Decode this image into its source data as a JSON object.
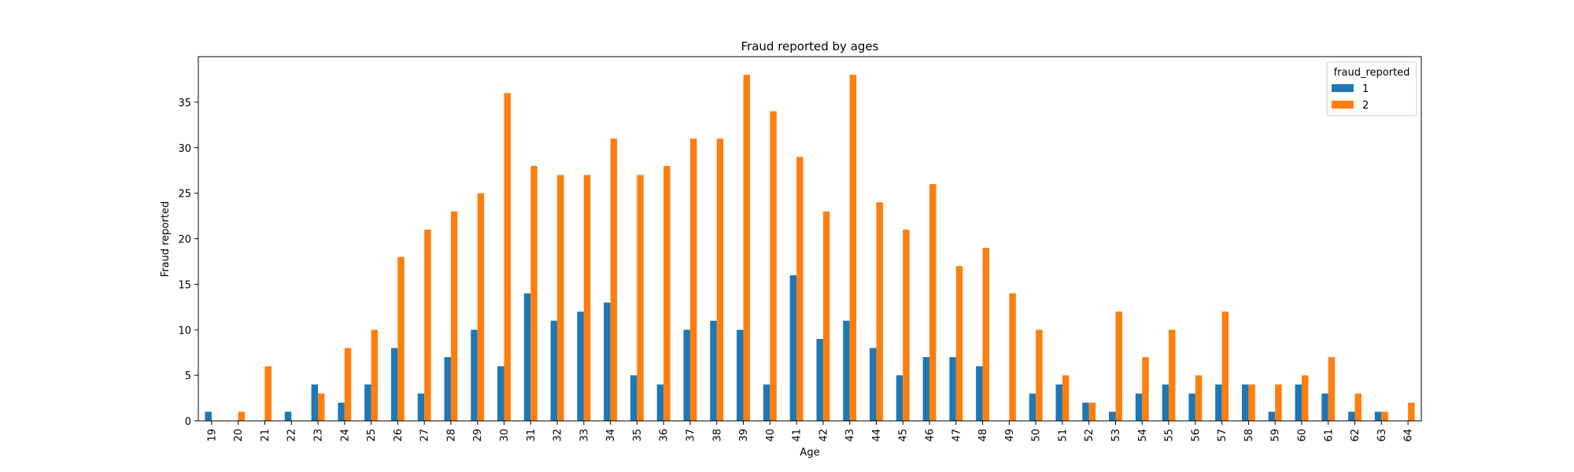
{
  "chart_data": {
    "type": "bar",
    "title": "Fraud reported by ages",
    "xlabel": "Age",
    "ylabel": "Fraud reported",
    "categories": [
      "19",
      "20",
      "21",
      "22",
      "23",
      "24",
      "25",
      "26",
      "27",
      "28",
      "29",
      "30",
      "31",
      "32",
      "33",
      "34",
      "35",
      "36",
      "37",
      "38",
      "39",
      "40",
      "41",
      "42",
      "43",
      "44",
      "45",
      "46",
      "47",
      "48",
      "49",
      "50",
      "51",
      "52",
      "53",
      "54",
      "55",
      "56",
      "57",
      "58",
      "59",
      "60",
      "61",
      "62",
      "63",
      "64"
    ],
    "series": [
      {
        "name": "1",
        "color": "#1f77b4",
        "values": [
          1,
          0,
          0,
          1,
          4,
          2,
          4,
          8,
          3,
          7,
          10,
          6,
          14,
          11,
          12,
          13,
          5,
          4,
          10,
          11,
          10,
          4,
          16,
          9,
          11,
          8,
          5,
          7,
          7,
          6,
          0,
          3,
          4,
          2,
          1,
          3,
          4,
          3,
          4,
          4,
          1,
          4,
          3,
          1,
          1,
          0
        ]
      },
      {
        "name": "2",
        "color": "#ff7f0e",
        "values": [
          0,
          1,
          6,
          0,
          3,
          8,
          10,
          18,
          21,
          23,
          25,
          36,
          28,
          27,
          27,
          31,
          27,
          28,
          31,
          31,
          38,
          34,
          29,
          23,
          38,
          24,
          21,
          26,
          17,
          19,
          14,
          10,
          5,
          2,
          12,
          7,
          10,
          5,
          12,
          4,
          4,
          5,
          7,
          3,
          1,
          2
        ]
      }
    ],
    "ylim": [
      0,
      40
    ],
    "yticks": [
      0,
      5,
      10,
      15,
      20,
      25,
      30,
      35
    ],
    "grid": false,
    "legend": {
      "title": "fraud_reported",
      "position": "top-right"
    }
  }
}
